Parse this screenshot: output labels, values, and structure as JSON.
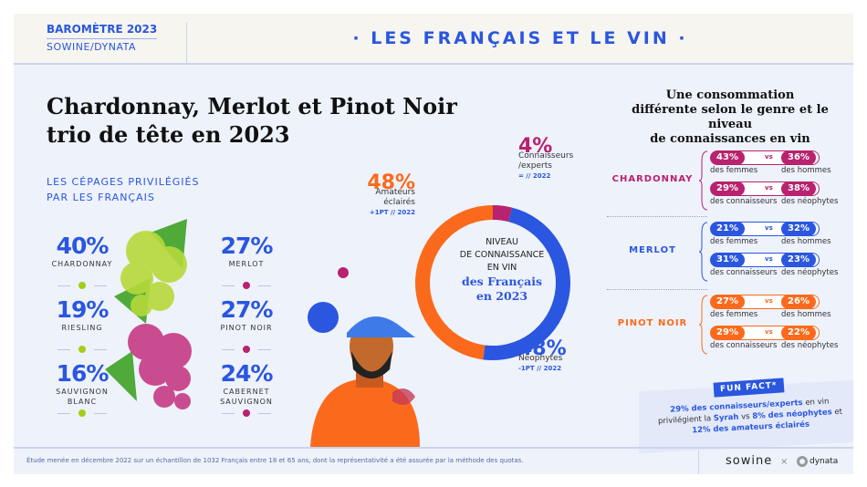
{
  "header": {
    "brand_line1": "BAROMÈTRE 2023",
    "brand_line2": "SOWINE/DYNATA",
    "title": "· LES FRANÇAIS ET LE VIN ·"
  },
  "headline": {
    "line1": "Chardonnay, Merlot et Pinot Noir",
    "line2": "trio de tête en 2023"
  },
  "subtitle": {
    "line1": "LES CÉPAGES PRIVILÉGIÉS",
    "line2": "PAR LES FRANÇAIS"
  },
  "grapes": [
    {
      "pct": "40%",
      "name": "CHARDONNAY",
      "color": "#a4cc1a"
    },
    {
      "pct": "19%",
      "name": "RIESLING",
      "color": "#a4cc1a"
    },
    {
      "pct": "16%",
      "name": "SAUVIGNON BLANC",
      "color": "#a4cc1a"
    },
    {
      "pct": "27%",
      "name": "MERLOT",
      "color": "#b8226e"
    },
    {
      "pct": "27%",
      "name": "PINOT NOIR",
      "color": "#b8226e"
    },
    {
      "pct": "24%",
      "name": "CABERNET SAUVIGNON",
      "color": "#b8226e"
    }
  ],
  "chart_data": {
    "type": "pie",
    "donut": true,
    "title": [
      "NIVEAU",
      "DE CONNAISSANCE",
      "EN VIN",
      "des Français",
      "en 2023"
    ],
    "slices": [
      {
        "label": "Connaisseurs /experts",
        "value": 4,
        "display": "4%",
        "change": "= // 2022",
        "color": "#b8226e"
      },
      {
        "label": "Néophytes",
        "value": 48,
        "display": "48%",
        "change": "-1PT // 2022",
        "color": "#2a56e0"
      },
      {
        "label": "Amateurs éclairés",
        "value": 48,
        "display": "48%",
        "change": "+1PT // 2022",
        "color": "#fb6a1c"
      }
    ]
  },
  "right": {
    "title": [
      "Une consommation",
      "différente selon le genre et le niveau",
      "de connaissances en vin"
    ],
    "vs": "vs",
    "groups": [
      {
        "name": "CHARDONNAY",
        "color": "#b8226e",
        "rows": [
          [
            "43%",
            "des femmes",
            "36%",
            "des hommes"
          ],
          [
            "29%",
            "des connaisseurs",
            "38%",
            "des néophytes"
          ]
        ]
      },
      {
        "name": "MERLOT",
        "color": "#2a56e0",
        "rows": [
          [
            "21%",
            "des femmes",
            "32%",
            "des hommes"
          ],
          [
            "31%",
            "des connaisseurs",
            "23%",
            "des néophytes"
          ]
        ]
      },
      {
        "name": "PINOT NOIR",
        "color": "#fb6a1c",
        "rows": [
          [
            "27%",
            "des femmes",
            "26%",
            "des hommes"
          ],
          [
            "29%",
            "des connaisseurs",
            "22%",
            "des néophytes"
          ]
        ]
      }
    ]
  },
  "funfact": {
    "tag": "FUN FACT*",
    "b1": "29% des connaisseurs/experts",
    "t1": " en vin privilégient la ",
    "b2": "Syrah",
    "t2": " vs ",
    "b3": "8% des néophytes",
    "t3": " et ",
    "b4": "12% des amateurs éclairés"
  },
  "footer": {
    "note": "Étude menée en décembre 2022 sur un échantillon de 1032 Français entre 18 et 65 ans, dont la représentativité a été assurée par la méthode des quotas.",
    "logo1": "sowine",
    "x": "×",
    "logo2": "dynata"
  }
}
